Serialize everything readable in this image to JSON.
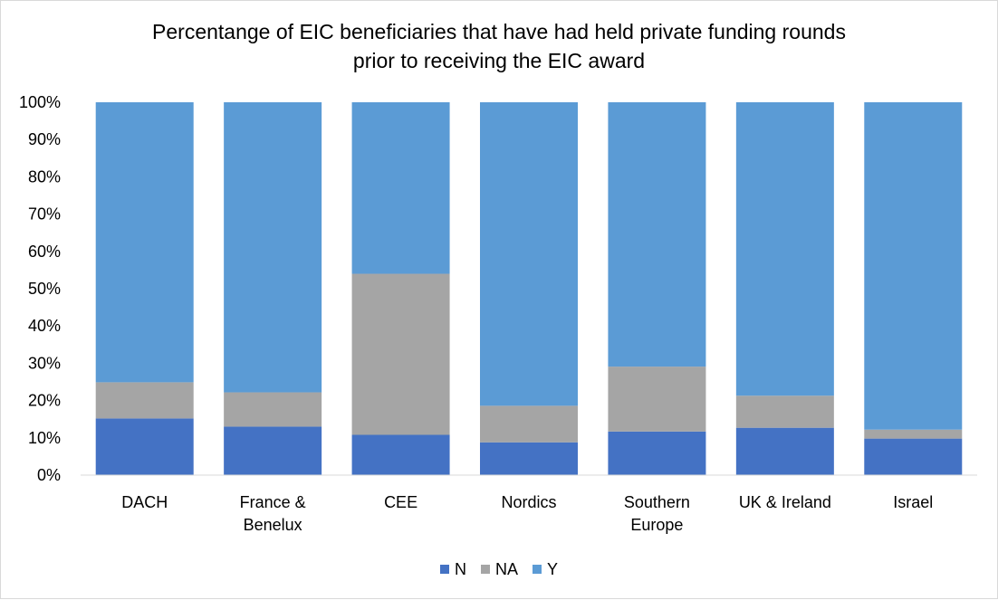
{
  "chart_data": {
    "type": "bar",
    "stacked": true,
    "title": "Percentange of EIC beneficiaries that have had held private funding rounds prior to receiving the EIC award",
    "title_lines": [
      "Percentange of EIC beneficiaries that have had held private funding rounds",
      "prior to receiving the EIC award"
    ],
    "categories": [
      [
        "DACH"
      ],
      [
        "France &",
        "Benelux"
      ],
      [
        "CEE"
      ],
      [
        "Nordics"
      ],
      [
        "Southern",
        "Europe"
      ],
      [
        "UK & Ireland"
      ],
      [
        "Israel"
      ]
    ],
    "series": [
      {
        "name": "N",
        "color": "#4472C4",
        "values": [
          15.2,
          13.0,
          10.8,
          8.8,
          11.7,
          12.7,
          9.8
        ]
      },
      {
        "name": "NA",
        "color": "#A5A5A5",
        "values": [
          9.7,
          9.2,
          43.2,
          9.8,
          17.4,
          8.6,
          2.4
        ]
      },
      {
        "name": "Y",
        "color": "#5B9BD5",
        "values": [
          75.1,
          77.8,
          46.0,
          81.4,
          70.9,
          78.7,
          87.8
        ]
      }
    ],
    "ylim": [
      0,
      100
    ],
    "yticks": [
      "0%",
      "10%",
      "20%",
      "30%",
      "40%",
      "50%",
      "60%",
      "70%",
      "80%",
      "90%",
      "100%"
    ],
    "grid": false,
    "legend": "bottom"
  }
}
